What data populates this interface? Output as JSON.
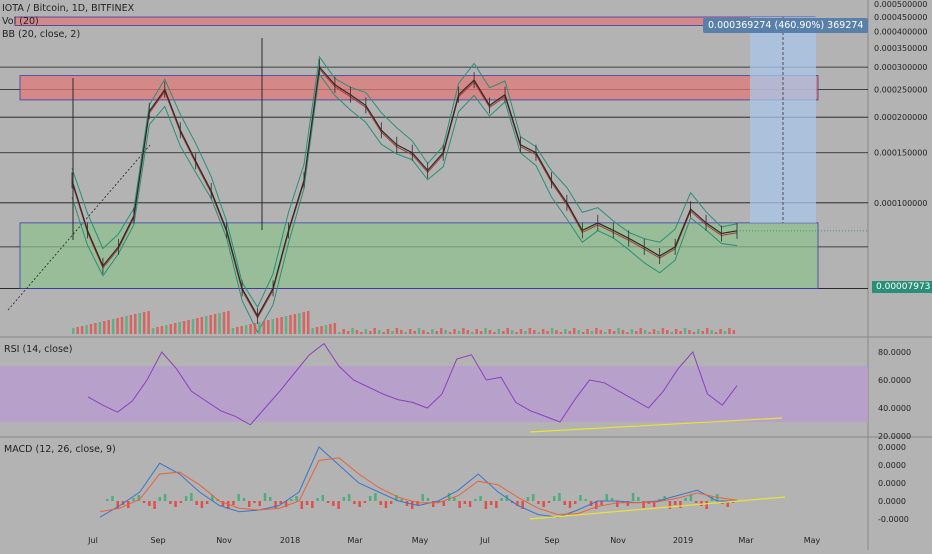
{
  "legend": {
    "symbol": "IOTA / Bitcoin, 1D, BITFINEX",
    "vol": "Vol (20)",
    "bb": "BB (20, close, 2)",
    "rsi": "RSI (14, close)",
    "macd": "MACD (12, 26, close, 9)"
  },
  "current_price_label": "0.00007973",
  "measure_label": "0.000369274 (460.90%) 369274",
  "colors": {
    "price_line": "#2b2b2b",
    "bb_band": "#2a8f77",
    "bb_basis": "#a83c2e",
    "rsi_line": "#8c3fbf",
    "rsi_band_fill": "#b99ad6",
    "macd_line": "#3c75c9",
    "signal_line": "#e8623c",
    "trendline": "#e8e23a",
    "resistance_zone": "#e07a7a",
    "support_zone": "#8fc08f",
    "projection_zone": "#a9c6e8",
    "vol_up": "#4cae7a",
    "vol_down": "#e0504a"
  },
  "chart_data": [
    {
      "type": "line",
      "panel": "price",
      "series": [
        {
          "name": "IOTA / Bitcoin",
          "values": [
            0.00012,
            8e-05,
            6e-05,
            7e-05,
            9e-05,
            0.00021,
            0.00025,
            0.00018,
            0.00014,
            0.00011,
            8e-05,
            5e-05,
            4e-05,
            5e-05,
            8e-05,
            0.00012,
            0.0003,
            0.00026,
            0.00024,
            0.00022,
            0.00018,
            0.00016,
            0.00015,
            0.00013,
            0.00015,
            0.00024,
            0.00027,
            0.00022,
            0.00024,
            0.00016,
            0.00015,
            0.00012,
            0.0001,
            8e-05,
            8.5e-05,
            8e-05,
            7.5e-05,
            7e-05,
            6.5e-05,
            7e-05,
            9.5e-05,
            8.5e-05,
            7.8e-05,
            7.97e-05
          ]
        }
      ],
      "ytick_labels": [
        "0.000500000",
        "0.000450000",
        "0.000400000",
        "0.000350000",
        "0.000300000",
        "0.000250000",
        "0.000200000",
        "0.000150000",
        "0.000100000",
        "0.000050000"
      ],
      "ylim": [
        4e-05,
        0.0005
      ],
      "x_tick_labels": [
        "Jul",
        "Sep",
        "Nov",
        "2018",
        "Mar",
        "May",
        "Jul",
        "Sep",
        "Nov",
        "2019",
        "Mar",
        "May"
      ],
      "current_value": 7.973e-05
    },
    {
      "type": "line",
      "panel": "rsi",
      "series": [
        {
          "name": "RSI",
          "values": [
            48,
            42,
            37,
            45,
            60,
            80,
            68,
            52,
            45,
            38,
            34,
            28,
            40,
            52,
            65,
            78,
            86,
            70,
            60,
            55,
            50,
            46,
            44,
            40,
            50,
            75,
            78,
            60,
            62,
            44,
            38,
            34,
            30,
            46,
            60,
            58,
            52,
            46,
            40,
            52,
            68,
            80,
            50,
            42,
            56
          ]
        }
      ],
      "ytick_labels": [
        "80.0000",
        "60.0000",
        "40.0000",
        "20.0000"
      ],
      "ylim": [
        20,
        90
      ],
      "band": [
        30,
        70
      ]
    },
    {
      "type": "line",
      "panel": "macd",
      "series": [
        {
          "name": "MACD",
          "values": [
            -1.8e-05,
            -5e-06,
            1e-05,
            4.2e-05,
            3e-05,
            1e-05,
            -5e-06,
            -1.2e-05,
            -1e-05,
            -5e-06,
            1e-05,
            6e-05,
            4e-05,
            2e-05,
            1e-05,
            0.0,
            -5e-06,
            0.0,
            1.2e-05,
            3e-05,
            1e-05,
            -5e-06,
            -1.5e-05,
            -1.8e-05,
            -1e-05,
            0.0,
            0.0,
            -2e-06,
            0.0,
            6e-06,
            1.2e-05,
            0.0,
            0.0
          ]
        },
        {
          "name": "Signal",
          "values": [
            -1.2e-05,
            -8e-06,
            2e-06,
            3e-05,
            3.2e-05,
            1.8e-05,
            0.0,
            -8e-06,
            -1e-05,
            -8e-06,
            0.0,
            4.5e-05,
            4.8e-05,
            3e-05,
            1.5e-05,
            4e-06,
            -2e-06,
            -2e-06,
            6e-06,
            2.2e-05,
            1.8e-05,
            4e-06,
            -8e-06,
            -1.5e-05,
            -1.4e-05,
            -6e-06,
            -2e-06,
            -2e-06,
            -1e-06,
            3e-06,
            9e-06,
            4e-06,
            1e-06
          ]
        }
      ],
      "ytick_labels": [
        "0.0000",
        "0.0000",
        "0.0000",
        "0.0000",
        "-0.0000"
      ],
      "ylim": [
        -3e-05,
        7e-05
      ]
    }
  ]
}
